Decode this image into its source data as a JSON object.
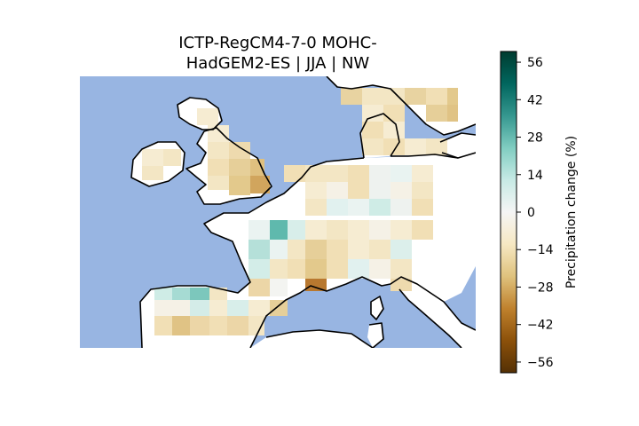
{
  "figure": {
    "title_line1": "ICTP-RegCM4-7-0 MOHC-",
    "title_line2": "HadGEM2-ES | JJA | NW"
  },
  "colorbar": {
    "label": "Precipitation change (%)",
    "range": [
      -60,
      60
    ],
    "ticks": [
      {
        "value": 56,
        "label": "56"
      },
      {
        "value": 42,
        "label": "42"
      },
      {
        "value": 28,
        "label": "28"
      },
      {
        "value": 14,
        "label": "14"
      },
      {
        "value": 0,
        "label": "0"
      },
      {
        "value": -14,
        "label": "−14"
      },
      {
        "value": -28,
        "label": "−28"
      },
      {
        "value": -42,
        "label": "−42"
      },
      {
        "value": -56,
        "label": "−56"
      }
    ],
    "colormap": "BrBG",
    "colormap_stops": [
      "#543005",
      "#8c510a",
      "#bf812d",
      "#dfc27d",
      "#f6e8c3",
      "#f5f5f5",
      "#c7eae5",
      "#80cdc1",
      "#35978f",
      "#01665e",
      "#003c30"
    ]
  },
  "map": {
    "region": "NW Europe",
    "ocean_color": "#98b5e2",
    "land_color": "#ffffff",
    "coastline_color": "#000000"
  }
}
